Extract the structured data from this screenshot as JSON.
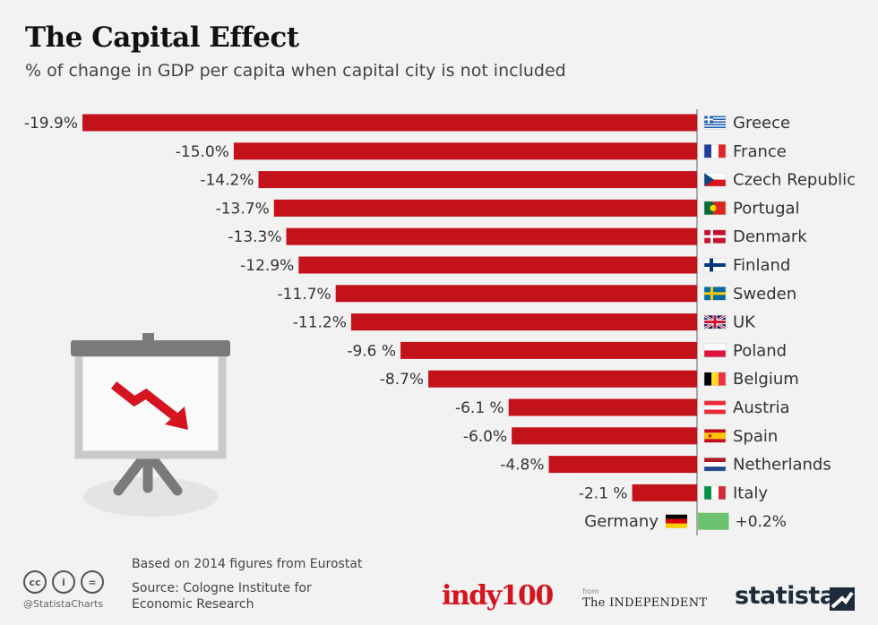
{
  "title": "The Capital Effect",
  "subtitle": "% of change in GDP per capita when capital city is not included",
  "footer": {
    "note": "Based on 2014 figures from Eurostat",
    "source": "Source: Cologne Institute for Economic Research",
    "handle": "@StatistaCharts",
    "cc_icons": [
      "cc",
      "i",
      "="
    ]
  },
  "logos": {
    "indy": "indy100",
    "from": "from",
    "independent": "The INDEPENDENT",
    "statista": "statista"
  },
  "colors": {
    "bar": "#c4121b",
    "background": "#f2f2f2",
    "positive_bar": "#6cc26f"
  },
  "icons": [
    "presentation-board-icon",
    "downtrend-arrow-icon"
  ],
  "chart_data": {
    "type": "bar",
    "orientation": "horizontal",
    "title": "The Capital Effect",
    "unit": "%",
    "categories": [
      "Greece",
      "France",
      "Czech Republic",
      "Portugal",
      "Denmark",
      "Finland",
      "Sweden",
      "UK",
      "Poland",
      "Belgium",
      "Austria",
      "Spain",
      "Netherlands",
      "Italy",
      "Germany"
    ],
    "values": [
      -19.9,
      -15.0,
      -14.2,
      -13.7,
      -13.3,
      -12.9,
      -11.7,
      -11.2,
      -9.6,
      -8.7,
      -6.1,
      -6.0,
      -4.8,
      -2.1,
      0.2
    ],
    "labels": [
      "-19.9%",
      "-15.0%",
      "-14.2%",
      "-13.7%",
      "-13.3%",
      "-12.9%",
      "-11.7%",
      "-11.2%",
      "-9.6 %",
      "-8.7%",
      "-6.1 %",
      "-6.0%",
      "-4.8%",
      "-2.1 %",
      "+0.2%"
    ],
    "xlim": [
      -20,
      0.5
    ]
  }
}
